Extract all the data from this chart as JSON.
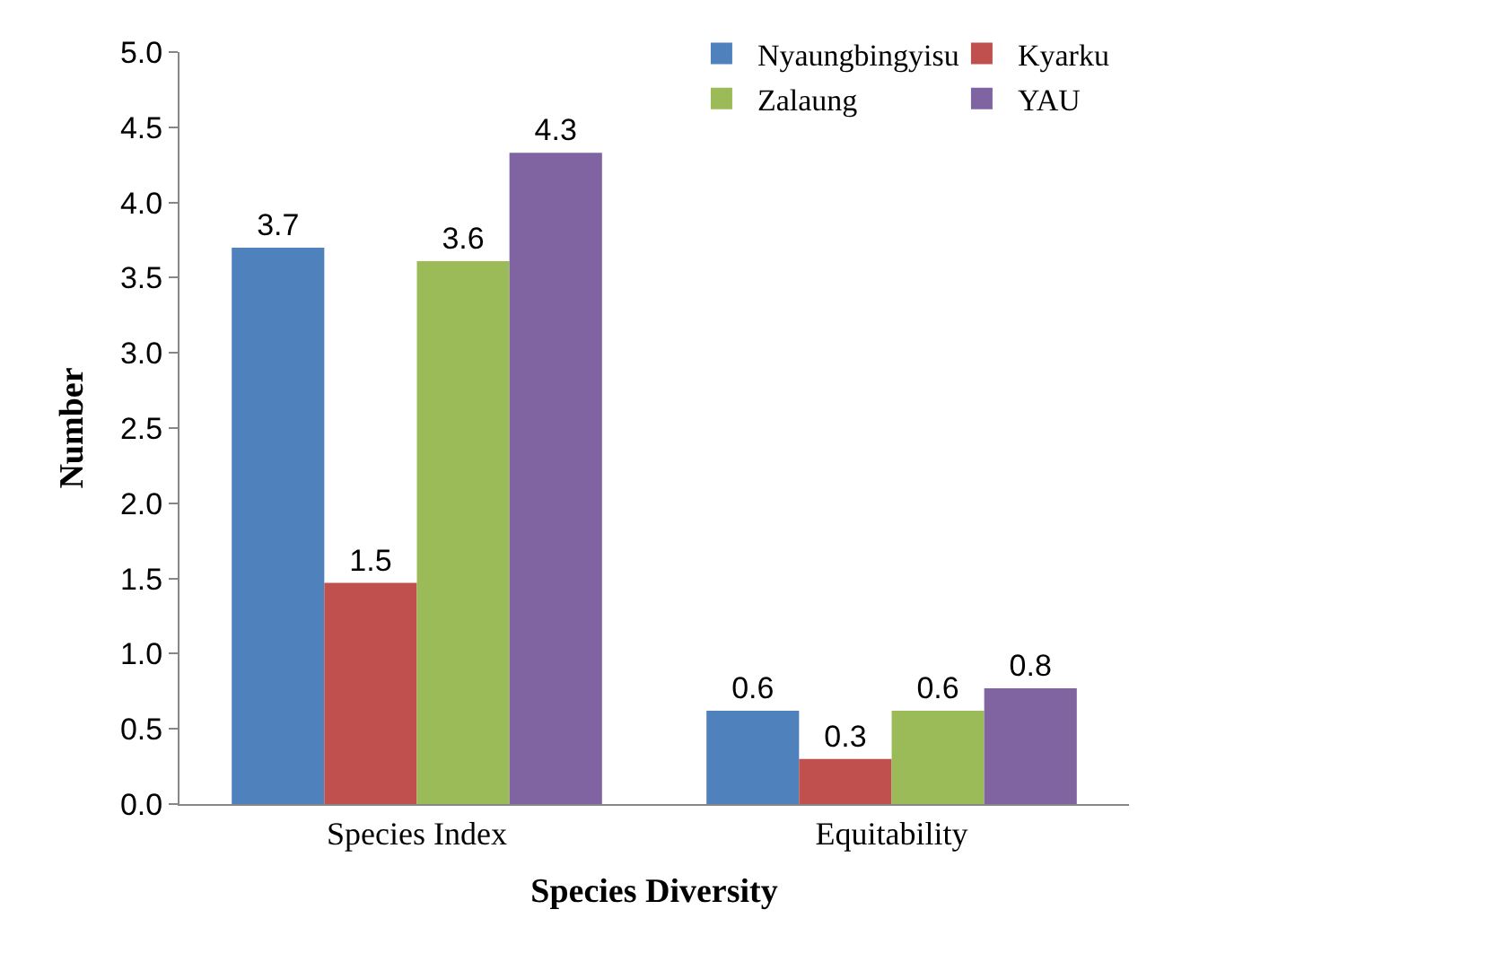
{
  "chart_data": {
    "type": "bar",
    "xlabel": "Species Diversity",
    "ylabel": "Number",
    "categories": [
      "Species Index",
      "Equitability"
    ],
    "series": [
      {
        "name": "Nyaungbingyisu",
        "color": "#4f81bd",
        "values": [
          3.7,
          0.62
        ],
        "value_labels": [
          "3.7",
          "0.6"
        ]
      },
      {
        "name": "Kyarku",
        "color": "#c0504d",
        "values": [
          1.47,
          0.3
        ],
        "value_labels": [
          "1.5",
          "0.3"
        ]
      },
      {
        "name": "Zalaung",
        "color": "#9bbb59",
        "values": [
          3.61,
          0.62
        ],
        "value_labels": [
          "3.6",
          "0.6"
        ]
      },
      {
        "name": "YAU",
        "color": "#8064a2",
        "values": [
          4.33,
          0.77
        ],
        "value_labels": [
          "4.3",
          "0.8"
        ]
      }
    ],
    "ylim": [
      0,
      5
    ],
    "yticks": [
      {
        "value": 0,
        "label": "0.0"
      },
      {
        "value": 0.5,
        "label": "0.5"
      },
      {
        "value": 1,
        "label": "1.0"
      },
      {
        "value": 1.5,
        "label": "1.5"
      },
      {
        "value": 2,
        "label": "2.0"
      },
      {
        "value": 2.5,
        "label": "2.5"
      },
      {
        "value": 3,
        "label": "3.0"
      },
      {
        "value": 3.5,
        "label": "3.5"
      },
      {
        "value": 4,
        "label": "4.0"
      },
      {
        "value": 4.5,
        "label": "4.5"
      },
      {
        "value": 5,
        "label": "5.0"
      }
    ],
    "legend": "top right"
  }
}
